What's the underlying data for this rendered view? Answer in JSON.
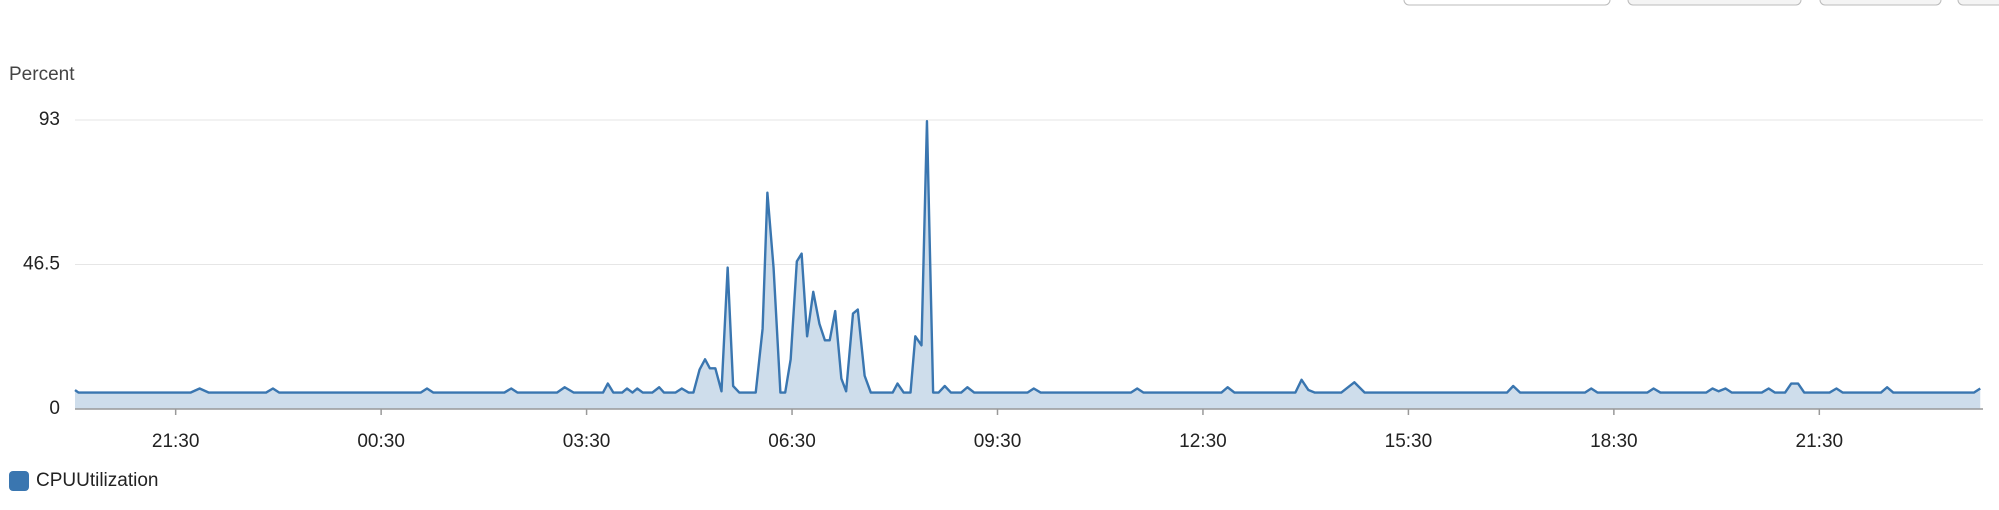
{
  "chart_data": {
    "type": "area",
    "y_axis_label": "Percent",
    "x": [
      -1.47,
      -1.42,
      0.22,
      0.35,
      0.48,
      1.32,
      1.42,
      1.51,
      3.58,
      3.67,
      3.76,
      4.8,
      4.9,
      4.99,
      5.57,
      5.68,
      5.81,
      6.24,
      6.31,
      6.39,
      6.52,
      6.59,
      6.67,
      6.74,
      6.82,
      6.96,
      7.06,
      7.13,
      7.3,
      7.39,
      7.49,
      7.56,
      7.65,
      7.73,
      7.8,
      7.88,
      7.97,
      8.06,
      8.14,
      8.23,
      8.47,
      8.57,
      8.64,
      8.73,
      8.83,
      8.9,
      8.98,
      9.07,
      9.14,
      9.22,
      9.31,
      9.4,
      9.48,
      9.55,
      9.63,
      9.72,
      9.79,
      9.89,
      9.96,
      10.06,
      10.15,
      10.47,
      10.54,
      10.63,
      10.73,
      10.8,
      10.89,
      10.97,
      11.06,
      11.14,
      11.23,
      11.32,
      11.47,
      11.56,
      11.66,
      12.44,
      12.53,
      12.63,
      13.95,
      14.04,
      14.13,
      15.27,
      15.36,
      15.46,
      16.35,
      16.44,
      16.54,
      16.63,
      17.02,
      17.21,
      17.36,
      19.44,
      19.53,
      19.63,
      20.58,
      20.67,
      20.76,
      21.49,
      21.58,
      21.68,
      22.35,
      22.44,
      22.53,
      22.63,
      22.72,
      23.16,
      23.26,
      23.35,
      23.5,
      23.59,
      23.69,
      23.78,
      24.15,
      24.25,
      24.34,
      24.9,
      24.99,
      25.08,
      26.26,
      26.35
    ],
    "series": [
      {
        "name": "CPUUtilization",
        "color": "#3a76b0",
        "values": [
          6.1,
          5.3,
          5.3,
          6.6,
          5.3,
          5.3,
          6.6,
          5.3,
          5.3,
          6.6,
          5.3,
          5.3,
          6.6,
          5.3,
          5.3,
          7.0,
          5.3,
          5.3,
          8.2,
          5.3,
          5.3,
          6.6,
          5.3,
          6.6,
          5.3,
          5.3,
          7.0,
          5.3,
          5.3,
          6.6,
          5.3,
          5.3,
          12.7,
          16.0,
          13.1,
          13.1,
          5.7,
          45.5,
          7.4,
          5.3,
          5.3,
          25.8,
          69.6,
          45.5,
          5.3,
          5.3,
          16.0,
          47.5,
          50.0,
          23.4,
          37.7,
          27.4,
          22.1,
          22.1,
          31.5,
          9.8,
          5.7,
          30.7,
          32.0,
          10.7,
          5.3,
          5.3,
          8.2,
          5.3,
          5.3,
          23.4,
          20.5,
          92.6,
          5.3,
          5.3,
          7.4,
          5.3,
          5.3,
          7.0,
          5.3,
          5.3,
          6.6,
          5.3,
          5.3,
          6.6,
          5.3,
          5.3,
          7.0,
          5.3,
          5.3,
          9.4,
          6.1,
          5.3,
          5.3,
          8.6,
          5.3,
          5.3,
          7.4,
          5.3,
          5.3,
          6.6,
          5.3,
          5.3,
          6.6,
          5.3,
          5.3,
          6.6,
          5.7,
          6.6,
          5.3,
          5.3,
          6.6,
          5.3,
          5.3,
          8.2,
          8.2,
          5.3,
          5.3,
          6.6,
          5.3,
          5.3,
          7.0,
          5.3,
          5.3,
          6.6
        ]
      }
    ],
    "xlim": [
      -1.47,
      26.39
    ],
    "xticks": [
      {
        "value": 0,
        "label": "21:30"
      },
      {
        "value": 3,
        "label": "00:30"
      },
      {
        "value": 6,
        "label": "03:30"
      },
      {
        "value": 9,
        "label": "06:30"
      },
      {
        "value": 12,
        "label": "09:30"
      },
      {
        "value": 15,
        "label": "12:30"
      },
      {
        "value": 18,
        "label": "15:30"
      },
      {
        "value": 21,
        "label": "18:30"
      },
      {
        "value": 24,
        "label": "21:30"
      }
    ],
    "ylim": [
      0,
      93
    ],
    "yticks": [
      0,
      46.5,
      93
    ],
    "grid": true,
    "legend": "bottom-left"
  }
}
